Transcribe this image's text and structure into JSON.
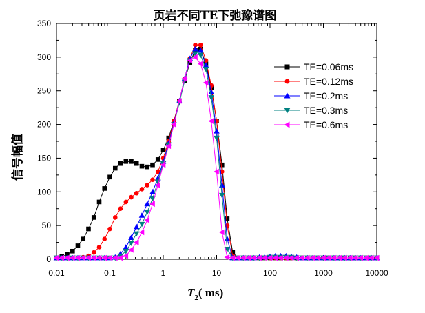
{
  "chart_data": {
    "type": "scatter",
    "title": "页岩不同TE下弛豫谱图",
    "xlabel_main": "T",
    "xlabel_sub": "2",
    "xlabel_unit": "(  ms)",
    "ylabel": "信号幅值",
    "xscale": "log",
    "xlim": [
      0.01,
      10000
    ],
    "ylim": [
      0,
      350
    ],
    "xticks": [
      "0.01",
      "0.1",
      "1",
      "10",
      "100",
      "1000",
      "10000"
    ],
    "yticks": [
      "0",
      "50",
      "100",
      "150",
      "200",
      "250",
      "300",
      "350"
    ],
    "grid": false,
    "legend_position": "top-right",
    "x": [
      0.01,
      0.0126,
      0.0158,
      0.02,
      0.0251,
      0.0316,
      0.0398,
      0.0501,
      0.0631,
      0.0794,
      0.1,
      0.126,
      0.158,
      0.2,
      0.251,
      0.316,
      0.398,
      0.501,
      0.631,
      0.794,
      1,
      1.26,
      1.58,
      2,
      2.51,
      3.16,
      3.98,
      5.01,
      6.31,
      7.94,
      10,
      12.6,
      15.8,
      20,
      25.1,
      31.6,
      39.8,
      50.1,
      63.1,
      79.4,
      100,
      126,
      158,
      200,
      251,
      316,
      398,
      501,
      631,
      794,
      1000,
      1260,
      1580,
      2000,
      2510,
      3160,
      3980,
      5010,
      6310,
      7940,
      10000
    ],
    "series": [
      {
        "name": "TE=0.06ms",
        "color": "#000000",
        "marker": "square",
        "values": [
          2,
          4,
          7,
          12,
          20,
          30,
          45,
          62,
          85,
          105,
          122,
          135,
          142,
          145,
          145,
          142,
          138,
          137,
          140,
          148,
          162,
          180,
          205,
          235,
          265,
          292,
          310,
          312,
          290,
          255,
          205,
          140,
          60,
          10,
          2,
          2,
          2,
          2,
          2,
          2,
          2,
          2,
          2,
          2,
          2,
          2,
          2,
          2,
          2,
          2,
          2,
          2,
          2,
          2,
          2,
          2,
          2,
          2,
          2,
          2,
          2
        ]
      },
      {
        "name": "TE=0.12ms",
        "color": "#ff0000",
        "marker": "circle",
        "values": [
          2,
          2,
          2,
          2,
          2,
          3,
          5,
          10,
          18,
          30,
          45,
          62,
          75,
          85,
          92,
          98,
          104,
          110,
          118,
          130,
          150,
          175,
          205,
          235,
          268,
          298,
          318,
          318,
          295,
          258,
          205,
          130,
          50,
          5,
          2,
          2,
          2,
          2,
          2,
          2,
          2,
          2,
          2,
          2,
          2,
          2,
          2,
          2,
          2,
          2,
          2,
          2,
          2,
          2,
          2,
          2,
          2,
          2,
          2,
          2,
          2
        ]
      },
      {
        "name": "TE=0.2ms",
        "color": "#0000ff",
        "marker": "triangle-up",
        "values": [
          2,
          2,
          2,
          2,
          2,
          2,
          2,
          2,
          2,
          2,
          2,
          3,
          8,
          18,
          32,
          48,
          65,
          82,
          100,
          120,
          145,
          172,
          202,
          235,
          268,
          298,
          312,
          310,
          288,
          248,
          190,
          110,
          30,
          2,
          2,
          2,
          2,
          2,
          3,
          3,
          4,
          5,
          5,
          5,
          4,
          3,
          2,
          2,
          2,
          2,
          2,
          2,
          2,
          2,
          2,
          2,
          2,
          2,
          2,
          2,
          2
        ]
      },
      {
        "name": "TE=0.3ms",
        "color": "#008080",
        "marker": "triangle-down",
        "values": [
          2,
          2,
          2,
          2,
          2,
          2,
          2,
          2,
          2,
          2,
          2,
          2,
          5,
          12,
          24,
          38,
          52,
          70,
          90,
          115,
          142,
          170,
          200,
          232,
          265,
          295,
          305,
          303,
          282,
          240,
          180,
          95,
          15,
          2,
          2,
          2,
          2,
          2,
          2,
          2,
          3,
          3,
          3,
          3,
          3,
          2,
          2,
          2,
          2,
          2,
          2,
          2,
          2,
          2,
          2,
          2,
          2,
          2,
          2,
          2,
          2
        ]
      },
      {
        "name": "TE=0.6ms",
        "color": "#ff00ff",
        "marker": "triangle-left",
        "values": [
          2,
          2,
          2,
          2,
          2,
          2,
          2,
          2,
          2,
          2,
          2,
          2,
          2,
          5,
          14,
          25,
          40,
          58,
          82,
          110,
          140,
          168,
          200,
          235,
          268,
          295,
          300,
          290,
          262,
          205,
          130,
          40,
          3,
          2,
          2,
          2,
          2,
          2,
          2,
          2,
          2,
          2,
          2,
          2,
          2,
          2,
          2,
          2,
          2,
          2,
          2,
          2,
          2,
          2,
          2,
          2,
          2,
          2,
          2,
          2,
          2
        ]
      }
    ]
  }
}
